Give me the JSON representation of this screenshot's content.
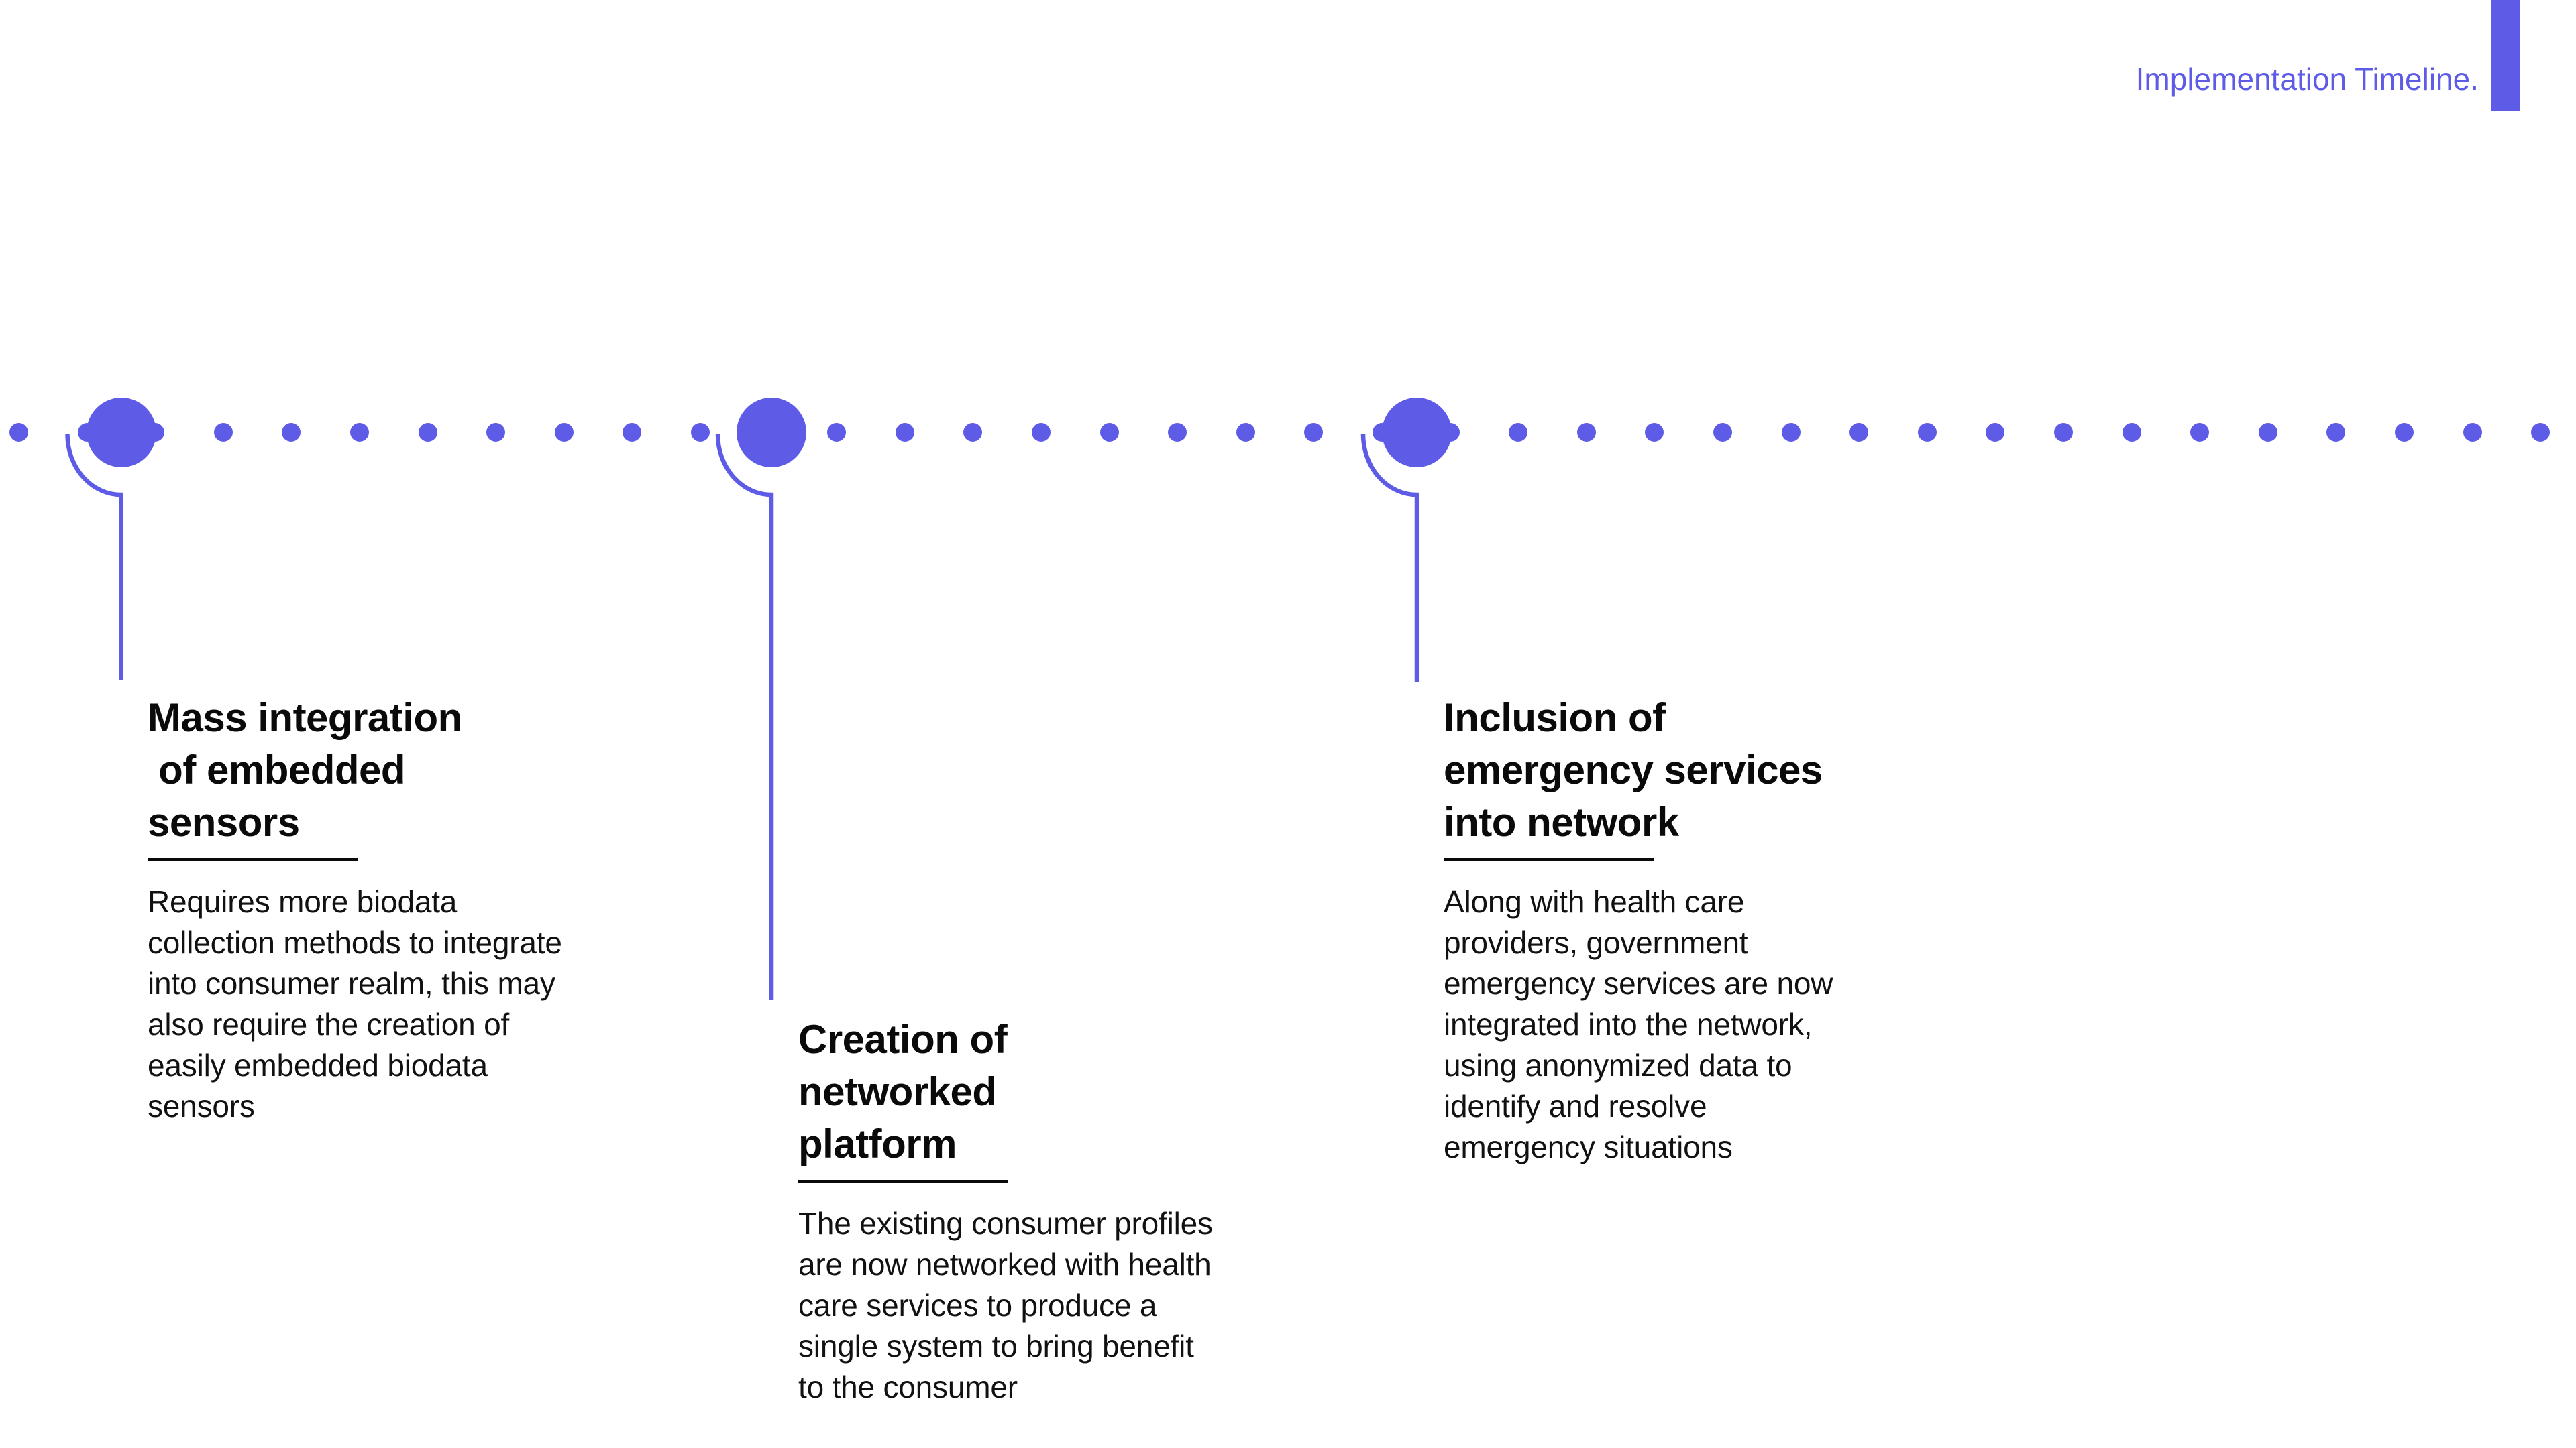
{
  "header": {
    "title": "Implementation Timeline.",
    "accent_color": "#5E5CE6"
  },
  "timeline": {
    "dot_color": "#5E5CE6",
    "text_color": "#0a0a0a"
  },
  "milestones": [
    {
      "title": "Mass integration\n of embedded\nsensors",
      "description": "Requires more biodata\ncollection methods to integrate\ninto consumer realm, this may\nalso require the creation of\neasily embedded biodata\nsensors"
    },
    {
      "title": "Creation of\nnetworked\nplatform",
      "description": "The existing consumer profiles\nare now networked with health\ncare services to produce a\nsingle system to bring benefit\nto the consumer"
    },
    {
      "title": "Inclusion of\nemergency services\ninto network",
      "description": "Along with health care\nproviders, government\nemergency services are now\nintegrated into the network,\nusing anonymized data to\nidentify and resolve\nemergency situations"
    }
  ]
}
